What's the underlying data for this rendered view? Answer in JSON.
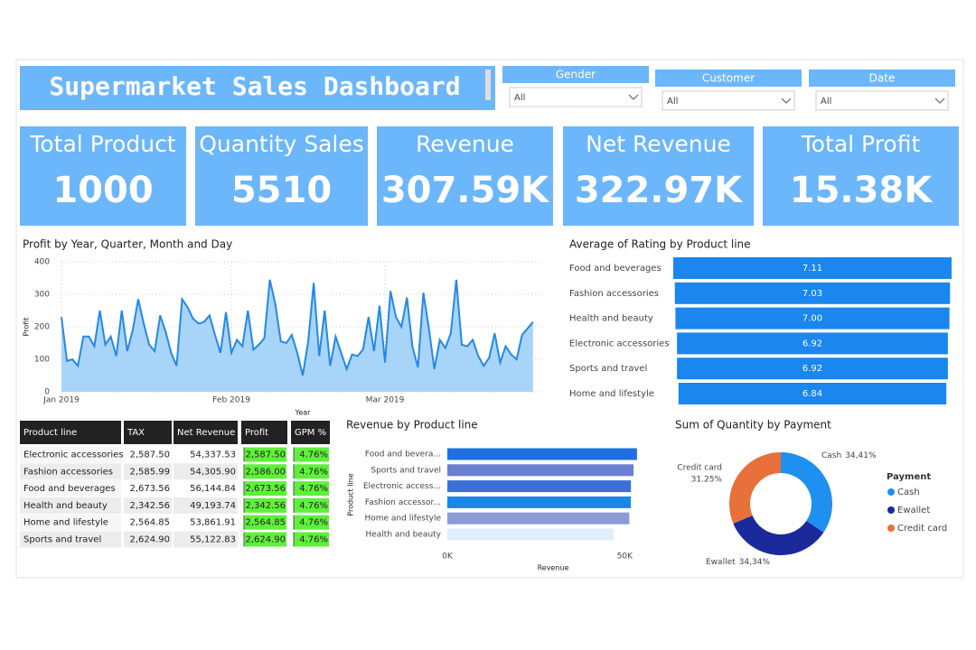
{
  "title": "Supermarket Sales Dashboard",
  "slicers": [
    {
      "label": "Gender",
      "value": "All"
    },
    {
      "label": "Customer",
      "value": "All"
    },
    {
      "label": "Date",
      "value": "All"
    }
  ],
  "kpis": [
    {
      "label": "Total Product",
      "value": "1000"
    },
    {
      "label": "Quantity Sales",
      "value": "5510"
    },
    {
      "label": "Revenue",
      "value": "307.59K"
    },
    {
      "label": "Net Revenue",
      "value": "322.97K"
    },
    {
      "label": "Total Profit",
      "value": "15.38K"
    }
  ],
  "chart_data": [
    {
      "type": "line",
      "title": "Profit by Year, Quarter, Month and Day",
      "x_label": "Year",
      "y_label": "Profit",
      "color": "#2389e6",
      "fill": "#a9d4fa",
      "values": [
        230,
        95,
        100,
        80,
        170,
        170,
        140,
        250,
        145,
        170,
        110,
        250,
        125,
        190,
        285,
        210,
        145,
        125,
        235,
        185,
        120,
        80,
        285,
        260,
        225,
        210,
        215,
        235,
        175,
        120,
        245,
        120,
        160,
        140,
        250,
        130,
        145,
        165,
        345,
        270,
        155,
        150,
        175,
        120,
        50,
        155,
        335,
        110,
        250,
        80,
        170,
        120,
        70,
        115,
        110,
        130,
        230,
        125,
        265,
        90,
        310,
        230,
        200,
        290,
        140,
        75,
        305,
        195,
        70,
        160,
        135,
        180,
        345,
        145,
        140,
        160,
        110,
        80,
        105,
        180,
        90,
        140,
        115,
        100,
        175,
        195,
        215
      ],
      "xlim": [
        0,
        88
      ],
      "xticks": [
        {
          "value": 0,
          "label": "Jan 2019"
        },
        {
          "value": 31,
          "label": "Feb 2019"
        },
        {
          "value": 59,
          "label": "Mar 2019"
        }
      ],
      "ylim": [
        0,
        400
      ],
      "yticks": [
        0,
        100,
        200,
        300,
        400
      ],
      "grid": true
    },
    {
      "type": "funnel",
      "title": "Average of Rating by Product line",
      "color": "#1a86ee",
      "categories": [
        "Food and beverages",
        "Fashion accessories",
        "Health and beauty",
        "Electronic accessories",
        "Sports and travel",
        "Home and lifestyle"
      ],
      "values": [
        7.11,
        7.03,
        7.0,
        6.92,
        6.92,
        6.84
      ],
      "value_labels": [
        "7.11",
        "7.03",
        "7.00",
        "6.92",
        "6.92",
        "6.84"
      ]
    },
    {
      "type": "bar",
      "orientation": "horizontal",
      "title": "Revenue by Product line",
      "x_label": "Revenue",
      "y_label": "Product line",
      "categories": [
        "Food and bevera...",
        "Sports and travel",
        "Electronic access...",
        "Fashion accessor...",
        "Home and lifestyle",
        "Health and beauty"
      ],
      "values": [
        53471.28,
        52497.93,
        51750.03,
        51719.91,
        51297.06,
        46851.18
      ],
      "colors": [
        "#1f6fe0",
        "#6a7fcf",
        "#3c6fd8",
        "#1a86e8",
        "#8b9bd8",
        "#deeefc"
      ],
      "xlim": [
        0,
        53500
      ],
      "xticks": [
        {
          "value": 0,
          "label": "0K"
        },
        {
          "value": 50000,
          "label": "50K"
        }
      ]
    },
    {
      "type": "pie",
      "donut": true,
      "title": "Sum of Quantity by Payment",
      "legend_title": "Payment",
      "categories": [
        "Cash",
        "Ewallet",
        "Credit card"
      ],
      "values": [
        34.41,
        34.34,
        31.25
      ],
      "value_labels": [
        "34,41%",
        "34,34%",
        "31.25%"
      ],
      "colors": [
        "#1f8ff0",
        "#1a2a9c",
        "#e8703a"
      ]
    }
  ],
  "table": {
    "columns": [
      "Product line",
      "TAX",
      "Net Revenue",
      "Profit",
      "GPM %"
    ],
    "rows": [
      [
        "Electronic accessories",
        "2,587.50",
        "54,337.53",
        "2,587.50",
        "4.76%"
      ],
      [
        "Fashion accessories",
        "2,585.99",
        "54,305.90",
        "2,586.00",
        "4.76%"
      ],
      [
        "Food and beverages",
        "2,673.56",
        "56,144.84",
        "2,673.56",
        "4.76%"
      ],
      [
        "Health and beauty",
        "2,342.56",
        "49,193.74",
        "2,342.56",
        "4.76%"
      ],
      [
        "Home and lifestyle",
        "2,564.85",
        "53,861.91",
        "2,564.85",
        "4.76%"
      ],
      [
        "Sports and travel",
        "2,624.90",
        "55,122.83",
        "2,624.90",
        "4.76%"
      ]
    ]
  }
}
